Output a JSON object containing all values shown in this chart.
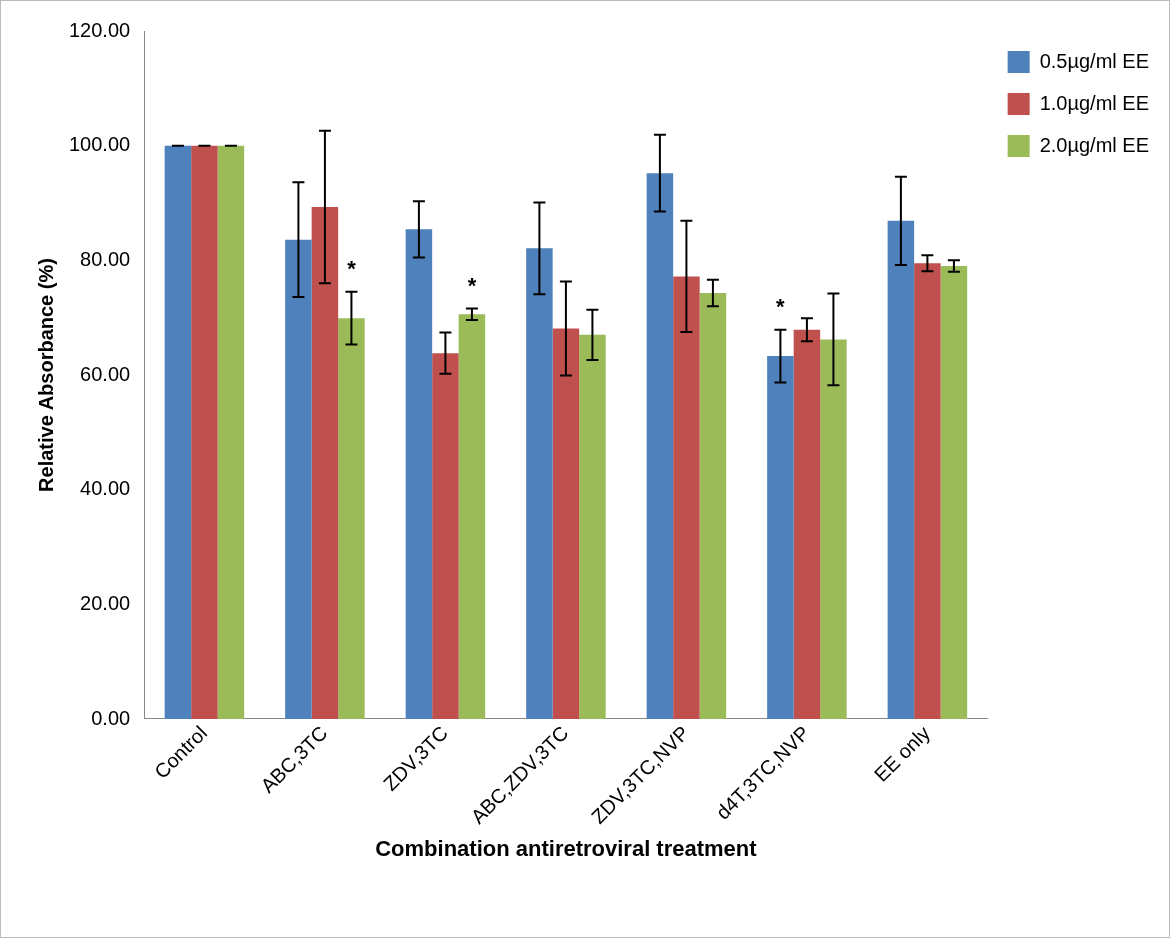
{
  "chart_data": {
    "type": "bar",
    "xlabel": "Combination antiretroviral treatment",
    "ylabel": "Relative Absorbance (%)",
    "categories": [
      "Control",
      "ABC,3TC",
      "ZDV,3TC",
      "ABC,ZDV,3TC",
      "ZDV,3TC,NVP",
      "d4T,3TC,NVP",
      "EE only"
    ],
    "series": [
      {
        "name": "0.5µg/ml EE",
        "color": "#4f81bd",
        "values": [
          100,
          83.6,
          85.4,
          82.1,
          95.2,
          63.3,
          86.9
        ],
        "errors": [
          0,
          10,
          4.9,
          8,
          6.7,
          4.6,
          7.7
        ],
        "value_labels": [
          null,
          null,
          null,
          null,
          null,
          "*",
          null
        ]
      },
      {
        "name": "1.0µg/ml EE",
        "color": "#c0504d",
        "values": [
          100,
          89.3,
          63.8,
          68.1,
          77.2,
          67.9,
          79.5
        ],
        "errors": [
          0,
          13.3,
          3.6,
          8.2,
          9.7,
          2,
          1.4
        ]
      },
      {
        "name": "2.0µg/ml EE",
        "color": "#9bbb59",
        "values": [
          100,
          69.9,
          70.6,
          67,
          74.3,
          66.2,
          79
        ],
        "errors": [
          0,
          4.6,
          1,
          4.4,
          2.3,
          8,
          1
        ],
        "value_labels": [
          null,
          "*",
          "*",
          null,
          null,
          null,
          null
        ]
      }
    ],
    "ylim": [
      0,
      120
    ],
    "yticks": [
      {
        "value": 0,
        "label": "0.00"
      },
      {
        "value": 20,
        "label": "20.00"
      },
      {
        "value": 40,
        "label": "40.00"
      },
      {
        "value": 60,
        "label": "60.00"
      },
      {
        "value": 80,
        "label": "80.00"
      },
      {
        "value": 100,
        "label": "100.00"
      },
      {
        "value": 120,
        "label": "120.00"
      }
    ],
    "grid": false,
    "legend": "top right"
  }
}
